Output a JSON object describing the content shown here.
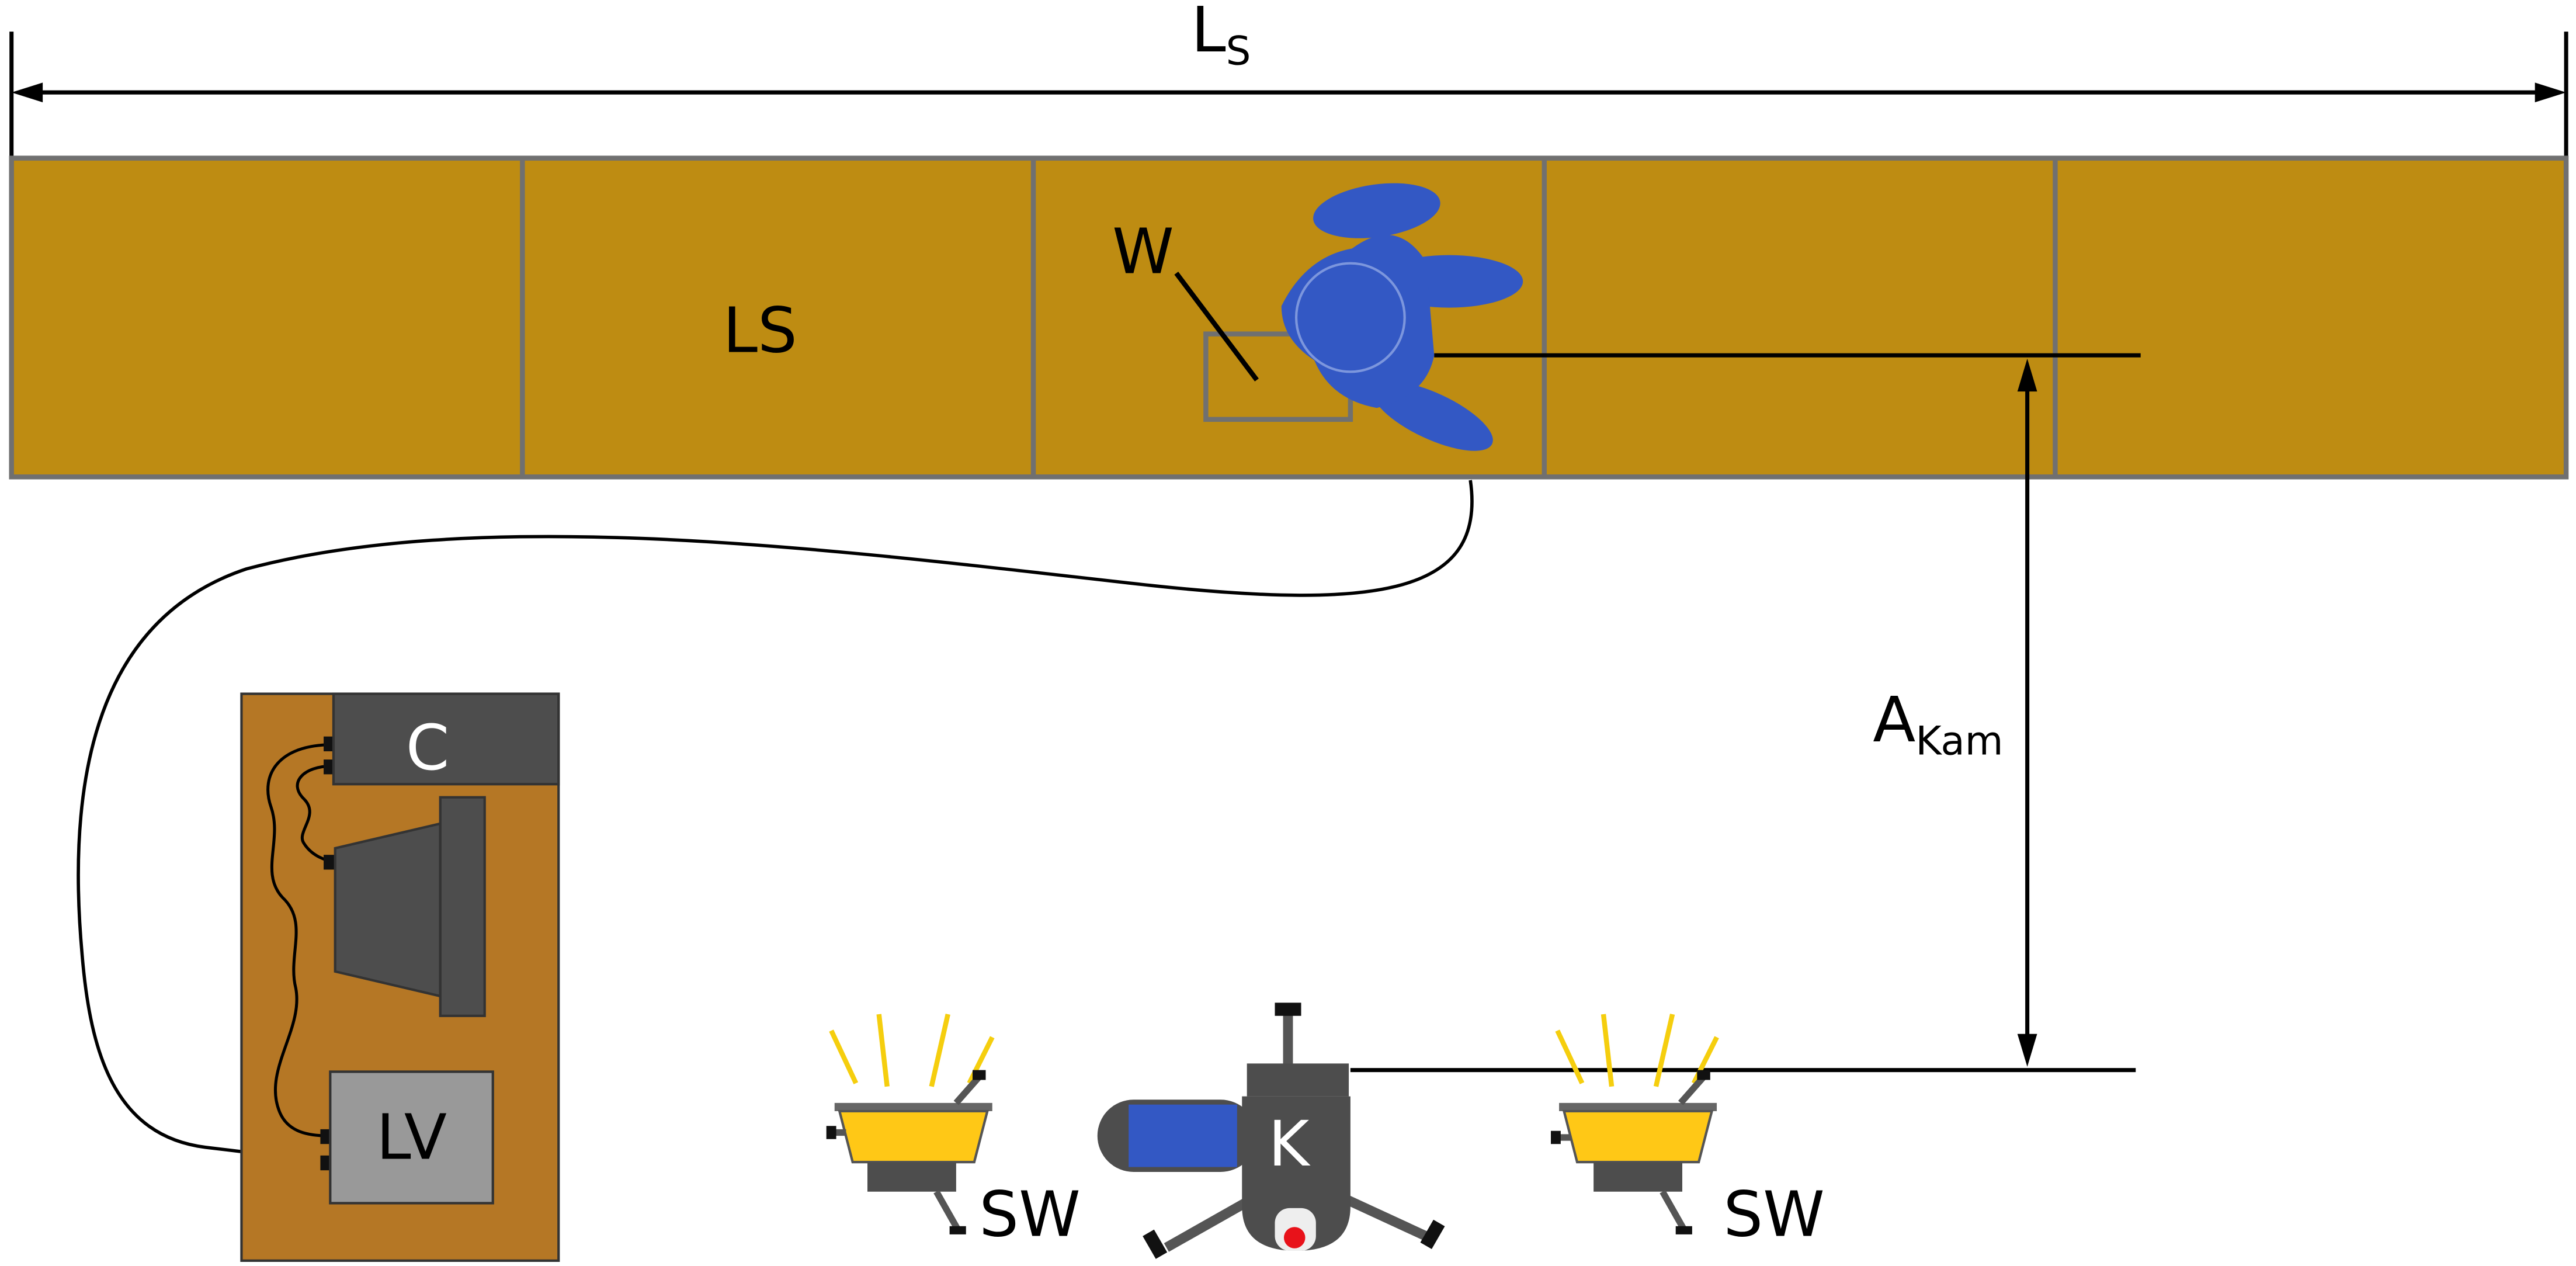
{
  "labels": {
    "ls_main": "L",
    "ls_sub": "S",
    "a_main": "A",
    "a_sub": "Kam",
    "section": "LS",
    "worker": "W",
    "controller": "C",
    "lv": "LV",
    "camera": "K",
    "light_left": "SW",
    "light_right": "SW"
  },
  "colors": {
    "strip": "#BE8C12",
    "cabinet": "#B57725",
    "worker": "#3358C4",
    "lamp": "#FFC816",
    "rays": "#F5CE0E",
    "dark_box": "#4D4D4D",
    "lv_box": "#999999",
    "camera_lens_dot": "#E8121A"
  }
}
